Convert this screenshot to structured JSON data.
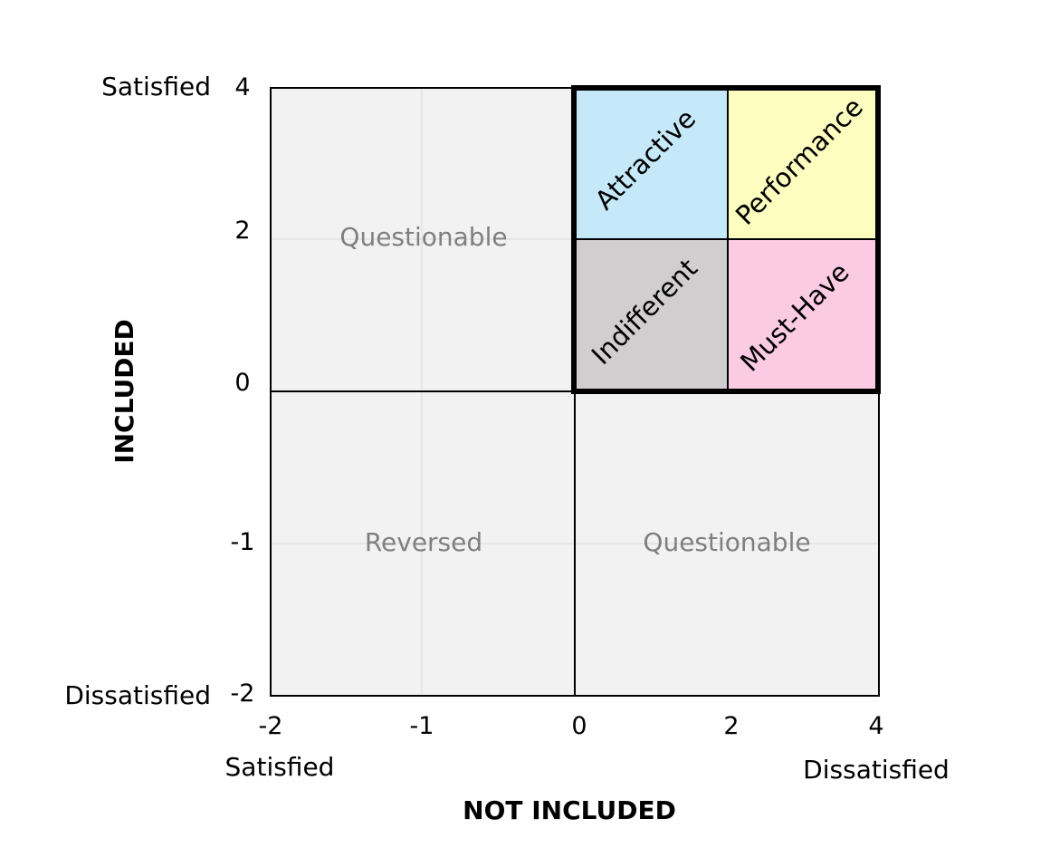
{
  "axes": {
    "x": {
      "title": "NOT INCLUDED",
      "ticks": [
        "-2",
        "-1",
        "0",
        "2",
        "4"
      ],
      "end_labels": {
        "low": "Satisfied",
        "high": "Dissatisfied"
      }
    },
    "y": {
      "title": "INCLUDED",
      "ticks": [
        "4",
        "2",
        "0",
        "-1",
        "-2"
      ],
      "end_labels": {
        "high": "Satisfied",
        "low": "Dissatisfied"
      }
    }
  },
  "regions": {
    "questionable_top": "Questionable",
    "reversed": "Reversed",
    "questionable_bottom": "Questionable",
    "attractive": "Attractive",
    "performance": "Performance",
    "indifferent": "Indifferent",
    "must_have": "Must-Have"
  },
  "colors": {
    "background_region": "#f2f2f2",
    "attractive": "#c5e9f8",
    "performance": "#fdfdbf",
    "indifferent": "#d0cece",
    "must_have": "#fbcbe4",
    "muted_text": "#7f7f7f",
    "border": "#000000"
  }
}
